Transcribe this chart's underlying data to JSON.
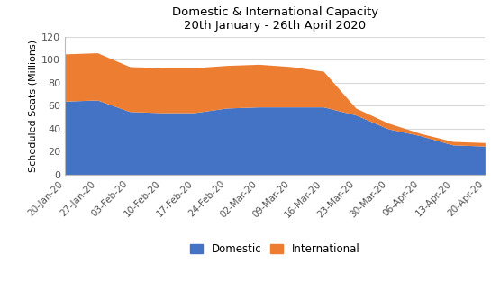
{
  "title_line1": "Domestic & International Capacity",
  "title_line2": "20th January - 26th April 2020",
  "ylabel": "Scheduled Seats (Millions)",
  "x_labels": [
    "20-Jan-20",
    "27-Jan-20",
    "03-Feb-20",
    "10-Feb-20",
    "17-Feb-20",
    "24-Feb-20",
    "02-Mar-20",
    "09-Mar-20",
    "16-Mar-20",
    "23-Mar-20",
    "30-Mar-20",
    "06-Apr-20",
    "13-Apr-20",
    "20-Apr-20"
  ],
  "domestic": [
    64,
    65,
    55,
    54,
    54,
    58,
    59,
    59,
    59,
    52,
    40,
    34,
    26,
    25
  ],
  "international": [
    41,
    41,
    39,
    39,
    39,
    37,
    37,
    35,
    31,
    6,
    5,
    2,
    3,
    3
  ],
  "domestic_color": "#4472C4",
  "international_color": "#ED7D31",
  "ylim": [
    0,
    120
  ],
  "yticks": [
    0,
    20,
    40,
    60,
    80,
    100,
    120
  ],
  "legend_domestic": "Domestic",
  "legend_international": "International",
  "background_color": "#ffffff",
  "grid_color": "#d9d9d9"
}
